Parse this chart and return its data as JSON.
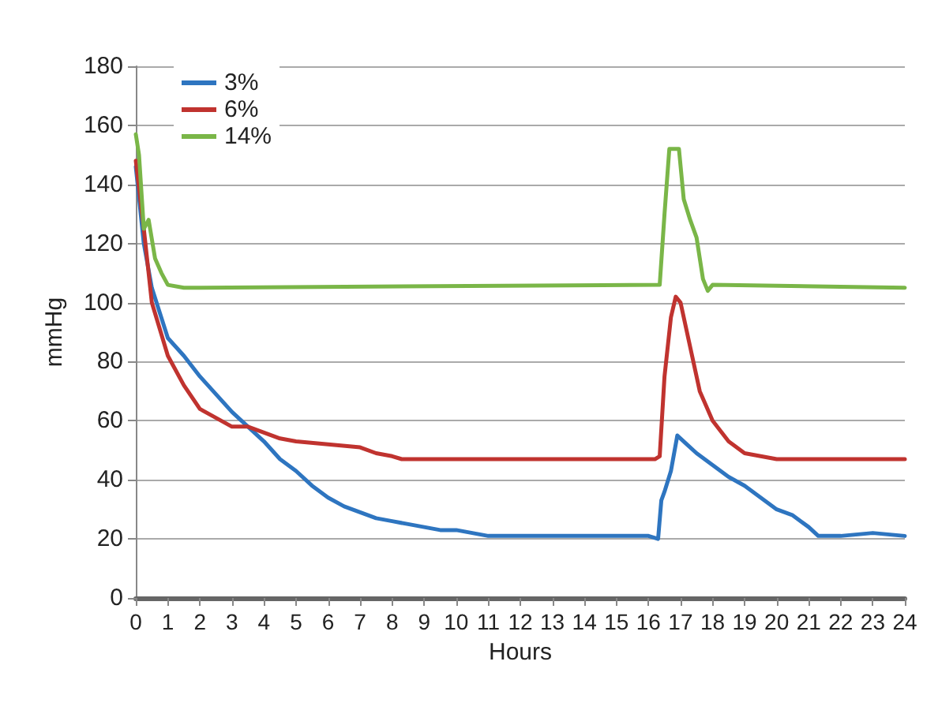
{
  "chart_data": {
    "type": "line",
    "xlabel": "Hours",
    "ylabel": "mmHg",
    "xlim": [
      0,
      24
    ],
    "xticks": [
      0,
      1,
      2,
      3,
      4,
      5,
      6,
      7,
      8,
      9,
      10,
      11,
      12,
      13,
      14,
      15,
      16,
      17,
      18,
      19,
      20,
      21,
      22,
      23,
      24
    ],
    "ylim": [
      0,
      180
    ],
    "yticks": [
      0,
      20,
      40,
      60,
      80,
      100,
      120,
      140,
      160,
      180
    ],
    "grid": "y",
    "legend": "top left",
    "marker": "none",
    "line_style": "solid",
    "series": [
      {
        "name": "3%",
        "color": "#2e75c0",
        "x": [
          0,
          0.25,
          0.5,
          1,
          1.5,
          2,
          2.5,
          3,
          3.5,
          4,
          4.5,
          5,
          5.5,
          6,
          6.5,
          7,
          7.5,
          8,
          8.5,
          9,
          9.5,
          10,
          10.5,
          11,
          12,
          13,
          14,
          15,
          16,
          16.3,
          16.4,
          16.5,
          16.7,
          16.9,
          17.2,
          17.5,
          18,
          18.5,
          19,
          19.5,
          20,
          20.5,
          21,
          21.3,
          22,
          23,
          24
        ],
        "values": [
          146,
          120,
          105,
          88,
          82,
          75,
          69,
          63,
          58,
          53,
          47,
          43,
          38,
          34,
          31,
          29,
          27,
          26,
          25,
          24,
          23,
          23,
          22,
          21,
          21,
          21,
          21,
          21,
          21,
          20,
          33,
          36,
          43,
          55,
          52,
          49,
          45,
          41,
          38,
          34,
          30,
          28,
          24,
          21,
          21,
          22,
          21
        ]
      },
      {
        "name": "6%",
        "color": "#c0332f",
        "x": [
          0,
          0.25,
          0.5,
          1,
          1.5,
          2,
          2.5,
          3,
          3.5,
          4,
          4.5,
          5,
          6,
          7,
          7.5,
          8,
          8.3,
          16.2,
          16.35,
          16.5,
          16.7,
          16.85,
          17,
          17.3,
          17.6,
          18,
          18.5,
          19,
          19.5,
          20,
          24
        ],
        "values": [
          148,
          125,
          100,
          82,
          72,
          64,
          61,
          58,
          58,
          56,
          54,
          53,
          52,
          51,
          49,
          48,
          47,
          47,
          48,
          75,
          95,
          102,
          100,
          85,
          70,
          60,
          53,
          49,
          48,
          47,
          47
        ]
      },
      {
        "name": "14%",
        "color": "#7ab648",
        "x": [
          0,
          0.1,
          0.25,
          0.4,
          0.6,
          0.8,
          1,
          1.5,
          16.35,
          16.5,
          16.65,
          16.95,
          17.1,
          17.3,
          17.5,
          17.7,
          17.85,
          18,
          24
        ],
        "values": [
          157,
          150,
          125,
          128,
          115,
          110,
          106,
          105,
          106,
          130,
          152,
          152,
          135,
          128,
          122,
          108,
          104,
          106,
          105
        ]
      }
    ]
  }
}
